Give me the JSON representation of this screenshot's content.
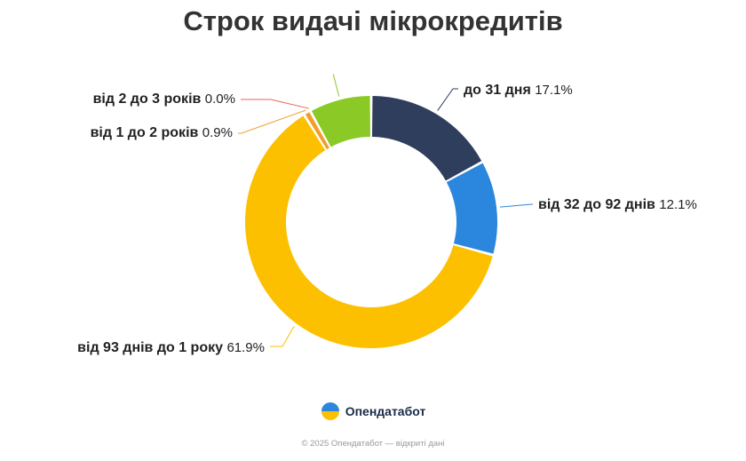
{
  "title": "Строк видачі мікрокредитів",
  "chart_data": {
    "type": "pie",
    "variant": "donut",
    "title": "Строк видачі мікрокредитів",
    "slices": [
      {
        "label": "до 31 дня",
        "value": 17.1,
        "value_label": "17.1%",
        "color": "#2e3e5c"
      },
      {
        "label": "від 32 до 92 днів",
        "value": 12.1,
        "value_label": "12.1%",
        "color": "#2b86dd"
      },
      {
        "label": "від 93 днів до 1 року",
        "value": 61.9,
        "value_label": "61.9%",
        "color": "#fcc000"
      },
      {
        "label": "від 1 до 2 років",
        "value": 0.9,
        "value_label": "0.9%",
        "color": "#f29d2a"
      },
      {
        "label": "від 2 до 3 років",
        "value": 0.0,
        "value_label": "0.0%",
        "color": "#e8625a"
      },
      {
        "label": "",
        "value": 8.0,
        "value_label": "",
        "color": "#8ac926"
      }
    ]
  },
  "brand": {
    "name": "Опендатабот",
    "icon": "opendatabot-logo-icon"
  },
  "footer": "© 2025 Опендатабот — відкриті дані"
}
